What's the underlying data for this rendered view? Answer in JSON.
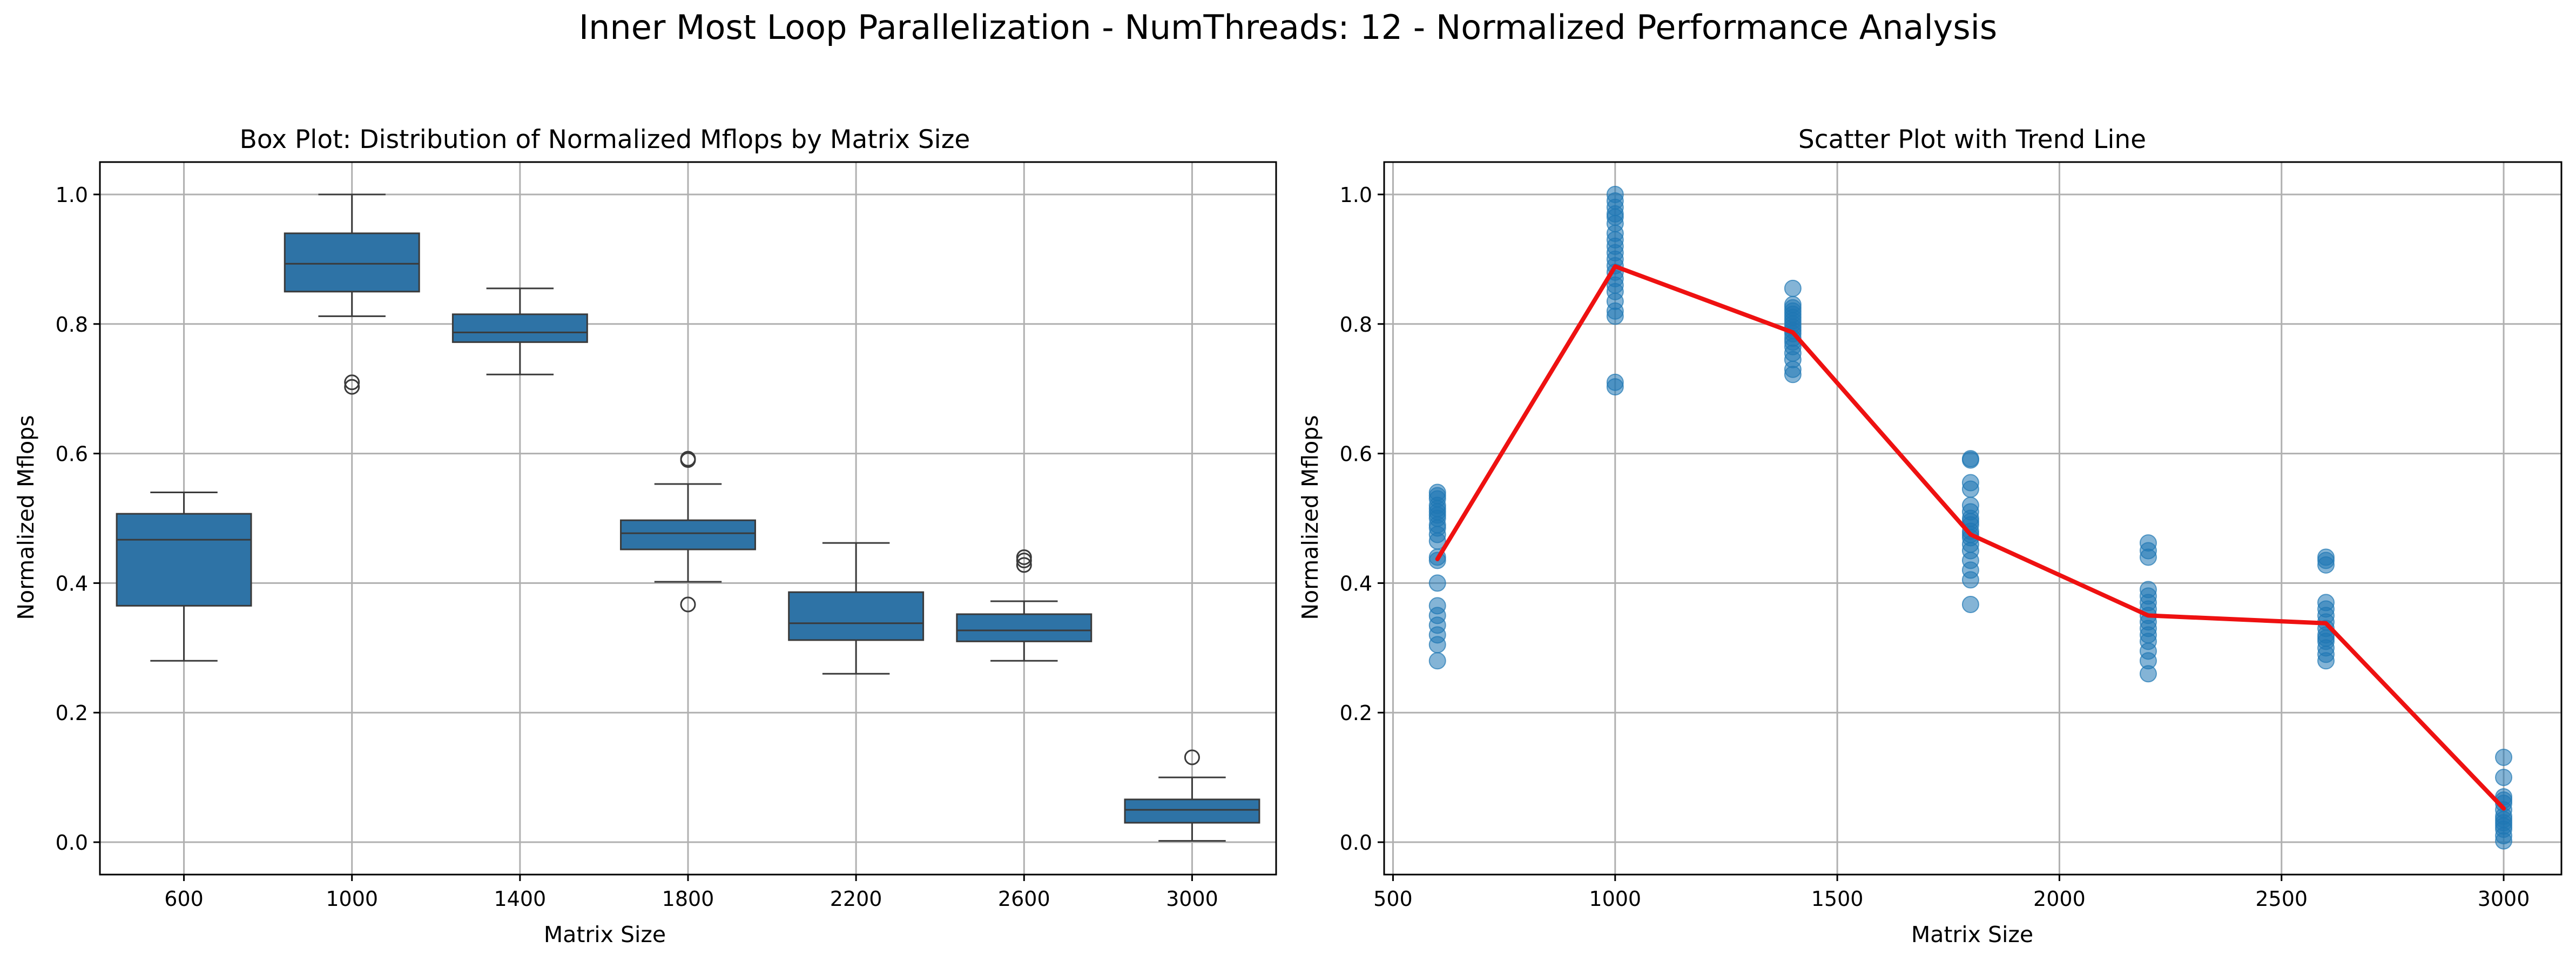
{
  "figure": {
    "suptitle": "Inner Most Loop Parallelization - NumThreads: 12 - Normalized Performance Analysis"
  },
  "chart_data": [
    {
      "type": "box",
      "title": "Box Plot: Distribution of Normalized Mflops by Matrix Size",
      "xlabel": "Matrix Size",
      "ylabel": "Normalized Mflops",
      "categories": [
        "600",
        "1000",
        "1400",
        "1800",
        "2200",
        "2600",
        "3000"
      ],
      "yticks": [
        "0.0",
        "0.2",
        "0.4",
        "0.6",
        "0.8",
        "1.0"
      ],
      "ylim": [
        -0.05,
        1.05
      ],
      "grid": true,
      "box_color": "#2e73a6",
      "boxes": [
        {
          "category": "600",
          "whisker_low": 0.28,
          "q1": 0.365,
          "median": 0.467,
          "q3": 0.507,
          "whisker_high": 0.54,
          "outliers": []
        },
        {
          "category": "1000",
          "whisker_low": 0.812,
          "q1": 0.85,
          "median": 0.893,
          "q3": 0.94,
          "whisker_high": 1.0,
          "outliers": [
            0.703,
            0.71
          ]
        },
        {
          "category": "1400",
          "whisker_low": 0.722,
          "q1": 0.772,
          "median": 0.787,
          "q3": 0.815,
          "whisker_high": 0.855,
          "outliers": []
        },
        {
          "category": "1800",
          "whisker_low": 0.402,
          "q1": 0.452,
          "median": 0.477,
          "q3": 0.497,
          "whisker_high": 0.553,
          "outliers": [
            0.367,
            0.59,
            0.592
          ]
        },
        {
          "category": "2200",
          "whisker_low": 0.26,
          "q1": 0.312,
          "median": 0.338,
          "q3": 0.386,
          "whisker_high": 0.462,
          "outliers": []
        },
        {
          "category": "2600",
          "whisker_low": 0.28,
          "q1": 0.31,
          "median": 0.327,
          "q3": 0.352,
          "whisker_high": 0.372,
          "outliers": [
            0.428,
            0.435,
            0.44
          ]
        },
        {
          "category": "3000",
          "whisker_low": 0.002,
          "q1": 0.03,
          "median": 0.05,
          "q3": 0.066,
          "whisker_high": 0.1,
          "outliers": [
            0.131
          ]
        }
      ]
    },
    {
      "type": "scatter",
      "title": "Scatter Plot with Trend Line",
      "xlabel": "Matrix Size",
      "ylabel": "Normalized Mflops",
      "xticks": [
        "500",
        "1000",
        "1500",
        "2000",
        "2500",
        "3000"
      ],
      "yticks": [
        "0.0",
        "0.2",
        "0.4",
        "0.6",
        "0.8",
        "1.0"
      ],
      "xlim": [
        480,
        3130
      ],
      "ylim": [
        -0.05,
        1.05
      ],
      "grid": true,
      "point_color": "#1f77b4",
      "line_color": "#ee1111",
      "points": [
        {
          "x": 600,
          "y": [
            0.28,
            0.305,
            0.32,
            0.335,
            0.35,
            0.365,
            0.4,
            0.435,
            0.44,
            0.465,
            0.475,
            0.485,
            0.49,
            0.5,
            0.505,
            0.51,
            0.515,
            0.52,
            0.53,
            0.535,
            0.54
          ]
        },
        {
          "x": 1000,
          "y": [
            0.703,
            0.71,
            0.812,
            0.82,
            0.835,
            0.85,
            0.86,
            0.87,
            0.88,
            0.89,
            0.9,
            0.91,
            0.92,
            0.93,
            0.94,
            0.955,
            0.965,
            0.97,
            0.98,
            0.99,
            1.0
          ]
        },
        {
          "x": 1400,
          "y": [
            0.722,
            0.73,
            0.745,
            0.755,
            0.765,
            0.772,
            0.778,
            0.785,
            0.79,
            0.795,
            0.8,
            0.805,
            0.81,
            0.815,
            0.82,
            0.825,
            0.83,
            0.855
          ]
        },
        {
          "x": 1800,
          "y": [
            0.367,
            0.405,
            0.42,
            0.435,
            0.45,
            0.46,
            0.47,
            0.475,
            0.48,
            0.49,
            0.495,
            0.5,
            0.51,
            0.52,
            0.545,
            0.555,
            0.59,
            0.592
          ]
        },
        {
          "x": 2200,
          "y": [
            0.26,
            0.28,
            0.295,
            0.31,
            0.32,
            0.33,
            0.34,
            0.35,
            0.36,
            0.37,
            0.38,
            0.39,
            0.44,
            0.45,
            0.462
          ]
        },
        {
          "x": 2600,
          "y": [
            0.28,
            0.29,
            0.3,
            0.31,
            0.315,
            0.32,
            0.33,
            0.34,
            0.35,
            0.36,
            0.37,
            0.428,
            0.435,
            0.44
          ]
        },
        {
          "x": 3000,
          "y": [
            0.002,
            0.01,
            0.02,
            0.025,
            0.03,
            0.035,
            0.04,
            0.05,
            0.06,
            0.065,
            0.07,
            0.1,
            0.131
          ]
        }
      ],
      "trend": {
        "x": [
          600,
          1000,
          1400,
          1800,
          2200,
          2600,
          3000
        ],
        "y": [
          0.437,
          0.889,
          0.787,
          0.475,
          0.35,
          0.338,
          0.052
        ]
      }
    }
  ]
}
